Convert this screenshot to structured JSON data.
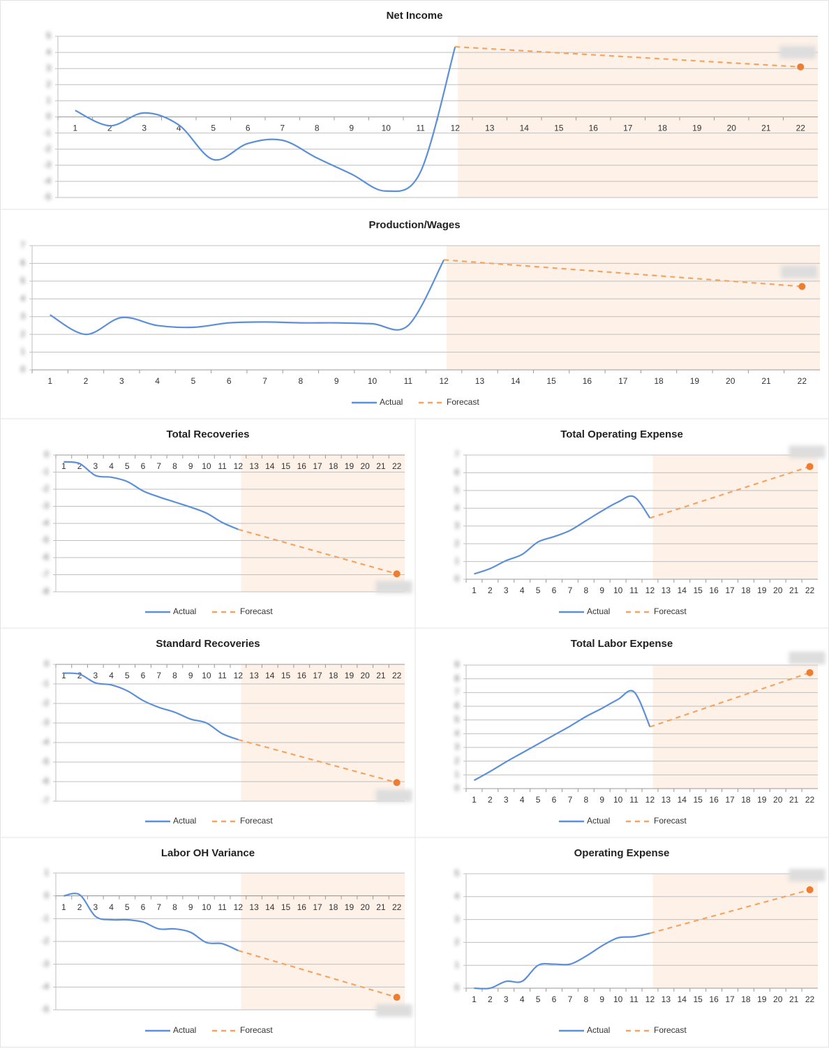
{
  "chart_data": [
    {
      "type": "line",
      "title": "Net Income",
      "categories": [
        "1",
        "2",
        "3",
        "4",
        "5",
        "6",
        "7",
        "8",
        "9",
        "10",
        "11",
        "12",
        "13",
        "14",
        "15",
        "16",
        "17",
        "18",
        "19",
        "20",
        "21",
        "22"
      ],
      "series": [
        {
          "name": "Actual",
          "color": "#5b8fd9",
          "values": [
            0.4,
            -0.55,
            0.25,
            -0.5,
            -2.65,
            -1.65,
            -1.45,
            -2.55,
            -3.55,
            -4.6,
            -3.4,
            4.35,
            null,
            null,
            null,
            null,
            null,
            null,
            null,
            null,
            null,
            null
          ]
        },
        {
          "name": "Forecast",
          "color": "#f4a460",
          "values": [
            null,
            null,
            null,
            null,
            null,
            null,
            null,
            null,
            null,
            null,
            null,
            4.35,
            4.225,
            4.1,
            3.975,
            3.85,
            3.725,
            3.6,
            3.475,
            3.35,
            3.225,
            3.1
          ]
        }
      ],
      "ylim": [
        -5,
        5
      ],
      "yticks": [
        -5,
        -4,
        -3,
        -2,
        -1,
        0,
        1,
        2,
        3,
        4,
        5
      ],
      "grid": true,
      "legend": false
    },
    {
      "type": "line",
      "title": "Production/Wages",
      "categories": [
        "1",
        "2",
        "3",
        "4",
        "5",
        "6",
        "7",
        "8",
        "9",
        "10",
        "11",
        "12",
        "13",
        "14",
        "15",
        "16",
        "17",
        "18",
        "19",
        "20",
        "21",
        "22"
      ],
      "series": [
        {
          "name": "Actual",
          "color": "#5b8fd9",
          "values": [
            3.1,
            2.0,
            2.95,
            2.5,
            2.4,
            2.65,
            2.7,
            2.65,
            2.65,
            2.6,
            2.5,
            6.2,
            null,
            null,
            null,
            null,
            null,
            null,
            null,
            null,
            null,
            null
          ]
        },
        {
          "name": "Forecast",
          "color": "#f4a460",
          "values": [
            null,
            null,
            null,
            null,
            null,
            null,
            null,
            null,
            null,
            null,
            null,
            6.2,
            6.05,
            5.9,
            5.75,
            5.6,
            5.45,
            5.3,
            5.15,
            5.0,
            4.85,
            4.7
          ]
        }
      ],
      "ylim": [
        0,
        7
      ],
      "yticks": [
        0,
        1,
        2,
        3,
        4,
        5,
        6,
        7
      ],
      "grid": true,
      "legend": true
    },
    {
      "type": "line",
      "title": "Total Recoveries",
      "categories": [
        "1",
        "2",
        "3",
        "4",
        "5",
        "6",
        "7",
        "8",
        "9",
        "10",
        "11",
        "12",
        "13",
        "14",
        "15",
        "16",
        "17",
        "18",
        "19",
        "20",
        "21",
        "22"
      ],
      "series": [
        {
          "name": "Actual",
          "color": "#5b8fd9",
          "values": [
            -0.4,
            -0.5,
            -1.2,
            -1.3,
            -1.55,
            -2.1,
            -2.45,
            -2.75,
            -3.05,
            -3.4,
            -3.95,
            -4.35,
            null,
            null,
            null,
            null,
            null,
            null,
            null,
            null,
            null,
            null
          ]
        },
        {
          "name": "Forecast",
          "color": "#f4a460",
          "values": [
            null,
            null,
            null,
            null,
            null,
            null,
            null,
            null,
            null,
            null,
            null,
            -4.35,
            -4.61,
            -4.87,
            -5.13,
            -5.39,
            -5.65,
            -5.91,
            -6.17,
            -6.43,
            -6.69,
            -6.95
          ]
        }
      ],
      "ylim": [
        -8,
        0
      ],
      "yticks": [
        -8,
        -7,
        -6,
        -5,
        -4,
        -3,
        -2,
        -1,
        0
      ],
      "grid": true,
      "legend": true
    },
    {
      "type": "line",
      "title": "Total Operating Expense",
      "categories": [
        "1",
        "2",
        "3",
        "4",
        "5",
        "6",
        "7",
        "8",
        "9",
        "10",
        "11",
        "12",
        "13",
        "14",
        "15",
        "16",
        "17",
        "18",
        "19",
        "20",
        "21",
        "22"
      ],
      "series": [
        {
          "name": "Actual",
          "color": "#5b8fd9",
          "values": [
            0.3,
            0.6,
            1.05,
            1.4,
            2.1,
            2.4,
            2.75,
            3.3,
            3.85,
            4.35,
            4.65,
            3.45,
            null,
            null,
            null,
            null,
            null,
            null,
            null,
            null,
            null,
            null
          ]
        },
        {
          "name": "Forecast",
          "color": "#f4a460",
          "values": [
            null,
            null,
            null,
            null,
            null,
            null,
            null,
            null,
            null,
            null,
            null,
            3.45,
            3.74,
            4.03,
            4.32,
            4.61,
            4.9,
            5.19,
            5.48,
            5.77,
            6.06,
            6.35
          ]
        }
      ],
      "ylim": [
        0,
        7
      ],
      "yticks": [
        0,
        1,
        2,
        3,
        4,
        5,
        6,
        7
      ],
      "grid": true,
      "legend": true
    },
    {
      "type": "line",
      "title": "Standard Recoveries",
      "categories": [
        "1",
        "2",
        "3",
        "4",
        "5",
        "6",
        "7",
        "8",
        "9",
        "10",
        "11",
        "12",
        "13",
        "14",
        "15",
        "16",
        "17",
        "18",
        "19",
        "20",
        "21",
        "22"
      ],
      "series": [
        {
          "name": "Actual",
          "color": "#5b8fd9",
          "values": [
            -0.45,
            -0.5,
            -0.95,
            -1.05,
            -1.35,
            -1.85,
            -2.2,
            -2.45,
            -2.8,
            -3.0,
            -3.55,
            -3.85,
            null,
            null,
            null,
            null,
            null,
            null,
            null,
            null,
            null,
            null
          ]
        },
        {
          "name": "Forecast",
          "color": "#f4a460",
          "values": [
            null,
            null,
            null,
            null,
            null,
            null,
            null,
            null,
            null,
            null,
            null,
            -3.85,
            -4.07,
            -4.29,
            -4.51,
            -4.73,
            -4.95,
            -5.17,
            -5.39,
            -5.61,
            -5.83,
            -6.05
          ]
        }
      ],
      "ylim": [
        -7,
        0
      ],
      "yticks": [
        -7,
        -6,
        -5,
        -4,
        -3,
        -2,
        -1,
        0
      ],
      "grid": true,
      "legend": true
    },
    {
      "type": "line",
      "title": "Total Labor Expense",
      "categories": [
        "1",
        "2",
        "3",
        "4",
        "5",
        "6",
        "7",
        "8",
        "9",
        "10",
        "11",
        "12",
        "13",
        "14",
        "15",
        "16",
        "17",
        "18",
        "19",
        "20",
        "21",
        "22"
      ],
      "series": [
        {
          "name": "Actual",
          "color": "#5b8fd9",
          "values": [
            0.6,
            1.25,
            1.95,
            2.6,
            3.25,
            3.9,
            4.55,
            5.25,
            5.85,
            6.5,
            7.05,
            4.5,
            null,
            null,
            null,
            null,
            null,
            null,
            null,
            null,
            null,
            null
          ]
        },
        {
          "name": "Forecast",
          "color": "#f4a460",
          "values": [
            null,
            null,
            null,
            null,
            null,
            null,
            null,
            null,
            null,
            null,
            null,
            4.5,
            4.895,
            5.29,
            5.685,
            6.08,
            6.475,
            6.87,
            7.265,
            7.66,
            8.055,
            8.45
          ]
        }
      ],
      "ylim": [
        0,
        9
      ],
      "yticks": [
        0,
        1,
        2,
        3,
        4,
        5,
        6,
        7,
        8,
        9
      ],
      "grid": true,
      "legend": true
    },
    {
      "type": "line",
      "title": "Labor OH Variance",
      "categories": [
        "1",
        "2",
        "3",
        "4",
        "5",
        "6",
        "7",
        "8",
        "9",
        "10",
        "11",
        "12",
        "13",
        "14",
        "15",
        "16",
        "17",
        "18",
        "19",
        "20",
        "21",
        "22"
      ],
      "series": [
        {
          "name": "Actual",
          "color": "#5b8fd9",
          "values": [
            0,
            0.05,
            -0.9,
            -1.05,
            -1.05,
            -1.15,
            -1.45,
            -1.45,
            -1.6,
            -2.05,
            -2.1,
            -2.4,
            null,
            null,
            null,
            null,
            null,
            null,
            null,
            null,
            null,
            null
          ]
        },
        {
          "name": "Forecast",
          "color": "#f4a460",
          "values": [
            null,
            null,
            null,
            null,
            null,
            null,
            null,
            null,
            null,
            null,
            null,
            -2.4,
            -2.605,
            -2.81,
            -3.015,
            -3.22,
            -3.425,
            -3.63,
            -3.835,
            -4.04,
            -4.245,
            -4.45
          ]
        }
      ],
      "ylim": [
        -5,
        1
      ],
      "yticks": [
        -5,
        -4,
        -3,
        -2,
        -1,
        0,
        1
      ],
      "grid": true,
      "legend": true
    },
    {
      "type": "line",
      "title": "Operating Expense",
      "categories": [
        "1",
        "2",
        "3",
        "4",
        "5",
        "6",
        "7",
        "8",
        "9",
        "10",
        "11",
        "12",
        "13",
        "14",
        "15",
        "16",
        "17",
        "18",
        "19",
        "20",
        "21",
        "22"
      ],
      "series": [
        {
          "name": "Actual",
          "color": "#5b8fd9",
          "values": [
            0,
            0,
            0.3,
            0.3,
            1.0,
            1.05,
            1.05,
            1.4,
            1.85,
            2.2,
            2.25,
            2.4,
            null,
            null,
            null,
            null,
            null,
            null,
            null,
            null,
            null,
            null
          ]
        },
        {
          "name": "Forecast",
          "color": "#f4a460",
          "values": [
            null,
            null,
            null,
            null,
            null,
            null,
            null,
            null,
            null,
            null,
            null,
            2.4,
            2.59,
            2.78,
            2.97,
            3.16,
            3.35,
            3.54,
            3.73,
            3.92,
            4.11,
            4.3
          ]
        }
      ],
      "ylim": [
        0,
        5
      ],
      "yticks": [
        0,
        1,
        2,
        3,
        4,
        5
      ],
      "grid": true,
      "legend": true
    }
  ]
}
